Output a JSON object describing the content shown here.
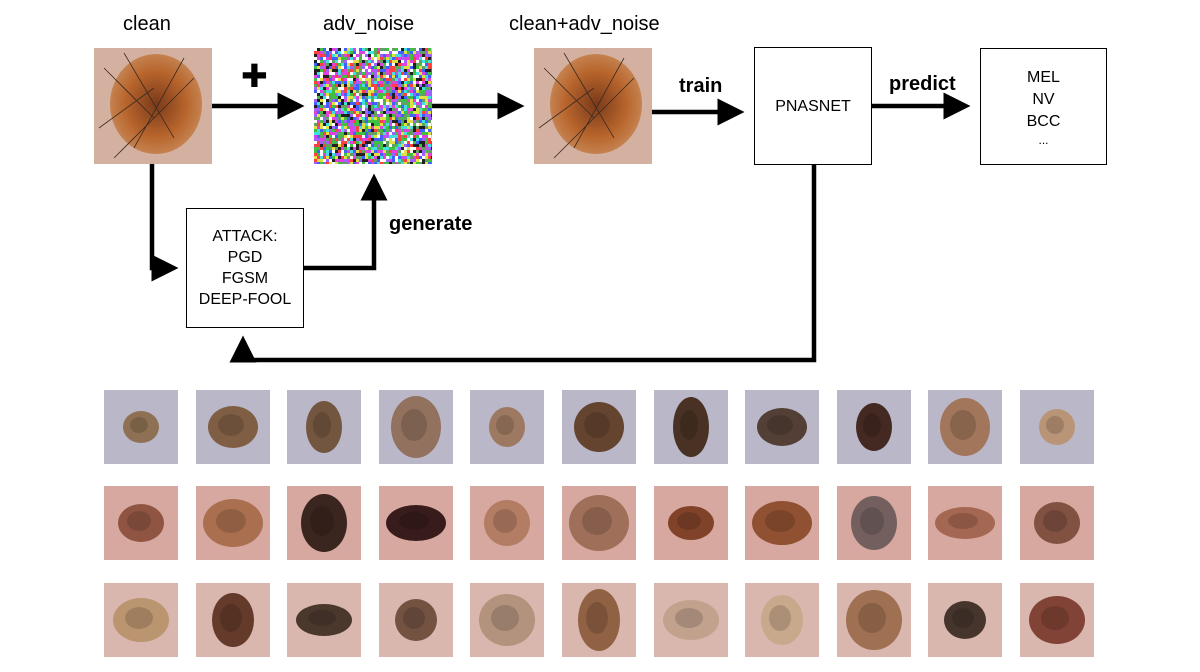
{
  "labels": {
    "clean": "clean",
    "adv_noise": "adv_noise",
    "clean_plus_adv": "clean+adv_noise",
    "train": "train",
    "predict": "predict",
    "generate": "generate",
    "plus_sign": "✚"
  },
  "attack_box": {
    "title": "ATTACK:",
    "methods": [
      "PGD",
      "FGSM",
      "DEEP-FOOL"
    ]
  },
  "model_box": {
    "name": "PNASNET"
  },
  "classes_box": {
    "items": [
      "MEL",
      "NV",
      "BCC",
      "..."
    ]
  },
  "sample_grid": {
    "rows": 3,
    "cols": 11,
    "skin_tones": [
      "#b9b7c8",
      "#d6a8a0",
      "#d9b6ae"
    ],
    "lesion_colors": [
      [
        "#8a6a4a",
        "#7a5638",
        "#6d4d33",
        "#8e6b55",
        "#9a7358",
        "#5d3a22",
        "#3f2515",
        "#4a3428",
        "#3a1c14",
        "#a07050",
        "#b89070"
      ],
      [
        "#8a4e3a",
        "#a66a48",
        "#2e1a14",
        "#2a1010",
        "#b07a5e",
        "#9a6a52",
        "#7a3a20",
        "#8a4a28",
        "#6a5a58",
        "#a0624a",
        "#7a4a3a"
      ],
      [
        "#b8926a",
        "#5a3020",
        "#3e2e22",
        "#6a4a38",
        "#b09078",
        "#8a5a3a",
        "#c0a08a",
        "#c8a888",
        "#9a6a4a",
        "#3a2a22",
        "#7a3a2a"
      ]
    ]
  }
}
